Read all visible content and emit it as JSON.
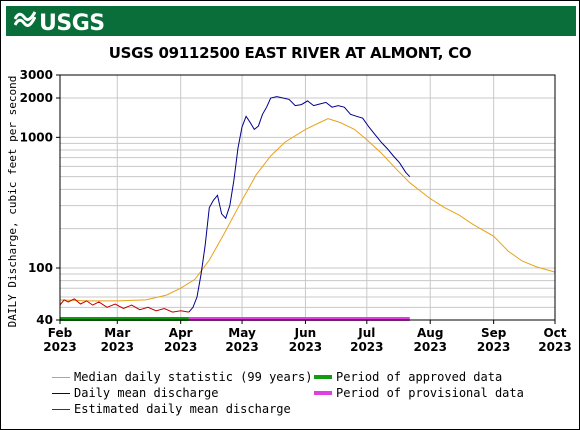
{
  "header": {
    "logo_text": "USGS"
  },
  "chart_data": {
    "type": "line",
    "title": "USGS 09112500 EAST RIVER AT ALMONT, CO",
    "ylabel": "DAILY Discharge, cubic feet per second",
    "xlabel": "",
    "yscale": "log",
    "ylim": [
      40,
      3000
    ],
    "xlim": [
      "2023-02-01",
      "2023-10-01"
    ],
    "y_ticks": [
      {
        "value": 40,
        "label": "40"
      },
      {
        "value": 100,
        "label": "100"
      },
      {
        "value": 1000,
        "label": "1000"
      },
      {
        "value": 2000,
        "label": "2000"
      },
      {
        "value": 3000,
        "label": "3000"
      }
    ],
    "x_ticks": [
      {
        "date": "2023-02-01",
        "month": "Feb",
        "year": "2023"
      },
      {
        "date": "2023-03-01",
        "month": "Mar",
        "year": "2023"
      },
      {
        "date": "2023-04-01",
        "month": "Apr",
        "year": "2023"
      },
      {
        "date": "2023-05-01",
        "month": "May",
        "year": "2023"
      },
      {
        "date": "2023-06-01",
        "month": "Jun",
        "year": "2023"
      },
      {
        "date": "2023-07-01",
        "month": "Jul",
        "year": "2023"
      },
      {
        "date": "2023-08-01",
        "month": "Aug",
        "year": "2023"
      },
      {
        "date": "2023-09-01",
        "month": "Sep",
        "year": "2023"
      },
      {
        "date": "2023-10-01",
        "month": "Oct",
        "year": "2023"
      }
    ],
    "grid": true,
    "series": [
      {
        "name": "Median daily statistic (99 years)",
        "color": "#e8a21a",
        "points": [
          [
            "2023-02-01",
            57
          ],
          [
            "2023-02-15",
            56
          ],
          [
            "2023-03-01",
            56
          ],
          [
            "2023-03-15",
            57
          ],
          [
            "2023-03-25",
            62
          ],
          [
            "2023-04-01",
            70
          ],
          [
            "2023-04-08",
            82
          ],
          [
            "2023-04-15",
            115
          ],
          [
            "2023-04-22",
            180
          ],
          [
            "2023-05-01",
            330
          ],
          [
            "2023-05-08",
            520
          ],
          [
            "2023-05-15",
            720
          ],
          [
            "2023-05-22",
            920
          ],
          [
            "2023-06-01",
            1150
          ],
          [
            "2023-06-08",
            1300
          ],
          [
            "2023-06-12",
            1390
          ],
          [
            "2023-06-18",
            1300
          ],
          [
            "2023-06-25",
            1150
          ],
          [
            "2023-07-01",
            960
          ],
          [
            "2023-07-08",
            760
          ],
          [
            "2023-07-15",
            580
          ],
          [
            "2023-07-22",
            450
          ],
          [
            "2023-08-01",
            340
          ],
          [
            "2023-08-08",
            290
          ],
          [
            "2023-08-15",
            255
          ],
          [
            "2023-08-22",
            215
          ],
          [
            "2023-09-01",
            175
          ],
          [
            "2023-09-08",
            135
          ],
          [
            "2023-09-15",
            113
          ],
          [
            "2023-09-22",
            102
          ],
          [
            "2023-10-01",
            93
          ]
        ]
      },
      {
        "name": "Daily mean discharge",
        "color": "#00008b",
        "points": [
          [
            "2023-04-05",
            46
          ],
          [
            "2023-04-07",
            50
          ],
          [
            "2023-04-09",
            60
          ],
          [
            "2023-04-11",
            90
          ],
          [
            "2023-04-13",
            150
          ],
          [
            "2023-04-15",
            290
          ],
          [
            "2023-04-17",
            330
          ],
          [
            "2023-04-19",
            360
          ],
          [
            "2023-04-21",
            260
          ],
          [
            "2023-04-23",
            240
          ],
          [
            "2023-04-25",
            300
          ],
          [
            "2023-04-27",
            470
          ],
          [
            "2023-04-29",
            830
          ],
          [
            "2023-05-01",
            1200
          ],
          [
            "2023-05-03",
            1450
          ],
          [
            "2023-05-05",
            1300
          ],
          [
            "2023-05-07",
            1150
          ],
          [
            "2023-05-09",
            1220
          ],
          [
            "2023-05-11",
            1500
          ],
          [
            "2023-05-13",
            1700
          ],
          [
            "2023-05-15",
            2000
          ],
          [
            "2023-05-18",
            2050
          ],
          [
            "2023-05-21",
            2000
          ],
          [
            "2023-05-24",
            1950
          ],
          [
            "2023-05-27",
            1750
          ],
          [
            "2023-05-30",
            1780
          ],
          [
            "2023-06-02",
            1900
          ],
          [
            "2023-06-05",
            1750
          ],
          [
            "2023-06-08",
            1800
          ],
          [
            "2023-06-11",
            1850
          ],
          [
            "2023-06-14",
            1700
          ],
          [
            "2023-06-17",
            1750
          ],
          [
            "2023-06-20",
            1700
          ],
          [
            "2023-06-23",
            1500
          ],
          [
            "2023-06-26",
            1450
          ],
          [
            "2023-06-29",
            1400
          ],
          [
            "2023-07-02",
            1200
          ],
          [
            "2023-07-05",
            1050
          ],
          [
            "2023-07-08",
            920
          ],
          [
            "2023-07-11",
            820
          ],
          [
            "2023-07-14",
            720
          ],
          [
            "2023-07-17",
            640
          ],
          [
            "2023-07-20",
            540
          ],
          [
            "2023-07-22",
            500
          ]
        ]
      },
      {
        "name": "Estimated daily mean discharge",
        "color": "#c00000",
        "points": [
          [
            "2023-02-01",
            52
          ],
          [
            "2023-02-03",
            57
          ],
          [
            "2023-02-05",
            55
          ],
          [
            "2023-02-08",
            58
          ],
          [
            "2023-02-11",
            53
          ],
          [
            "2023-02-14",
            56
          ],
          [
            "2023-02-17",
            52
          ],
          [
            "2023-02-20",
            55
          ],
          [
            "2023-02-24",
            50
          ],
          [
            "2023-02-28",
            53
          ],
          [
            "2023-03-04",
            49
          ],
          [
            "2023-03-08",
            52
          ],
          [
            "2023-03-12",
            48
          ],
          [
            "2023-03-16",
            50
          ],
          [
            "2023-03-20",
            47
          ],
          [
            "2023-03-24",
            49
          ],
          [
            "2023-03-28",
            46
          ],
          [
            "2023-04-01",
            47
          ],
          [
            "2023-04-05",
            46
          ]
        ]
      }
    ],
    "periods": [
      {
        "name": "Period of approved data",
        "color": "#119b11",
        "start": "2023-02-01",
        "end": "2023-04-05"
      },
      {
        "name": "Period of provisional data",
        "color": "#e040e0",
        "start": "2023-04-05",
        "end": "2023-07-22"
      }
    ]
  }
}
